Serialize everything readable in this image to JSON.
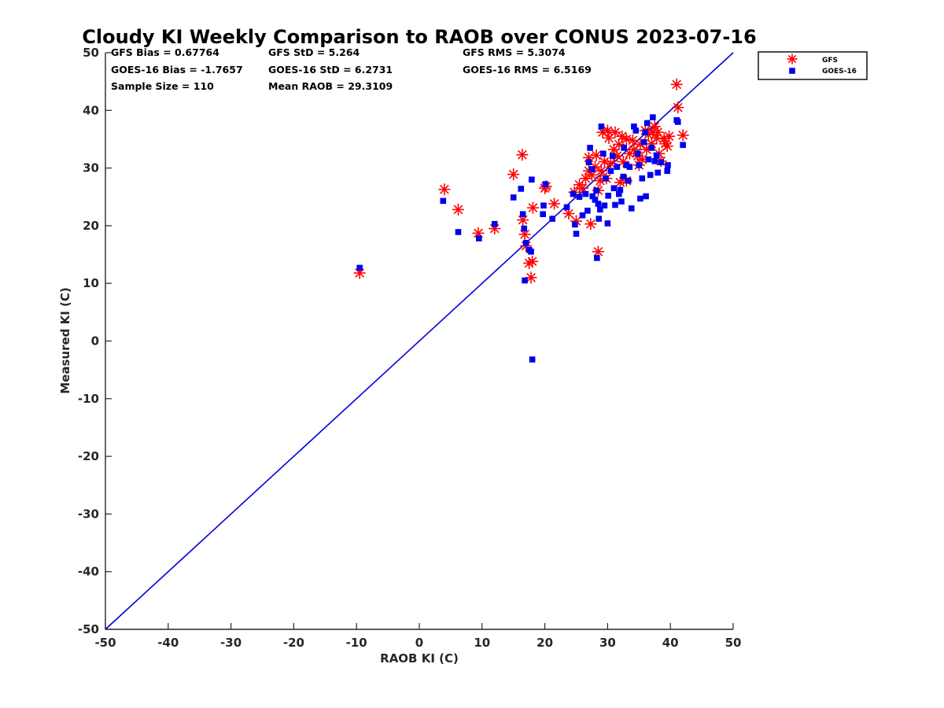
{
  "chart_data": {
    "type": "scatter",
    "title": "Cloudy KI Weekly Comparison to RAOB over CONUS 2023-07-16",
    "xlabel": "RAOB KI (C)",
    "ylabel": "Measured KI (C)",
    "xlim": [
      -50,
      50
    ],
    "ylim": [
      -50,
      50
    ],
    "xticks": [
      -50,
      -40,
      -30,
      -20,
      -10,
      0,
      10,
      20,
      30,
      40,
      50
    ],
    "yticks": [
      -50,
      -40,
      -30,
      -20,
      -10,
      0,
      10,
      20,
      30,
      40,
      50
    ],
    "reference_line": {
      "x": [
        -50,
        50
      ],
      "y": [
        -50,
        50
      ],
      "color": "#0000dd"
    },
    "stats": [
      [
        "GFS Bias = 0.67764",
        "GFS StD = 5.264",
        "GFS RMS = 5.3074"
      ],
      [
        "GOES-16 Bias = -1.7657",
        "GOES-16 StD = 6.2731",
        "GOES-16 RMS = 6.5169"
      ],
      [
        "Sample Size = 110",
        "Mean RAOB = 29.3109"
      ]
    ],
    "legend_position": "top-right-outside",
    "series": [
      {
        "name": "GFS",
        "marker": "asterisk",
        "color": "#ff0000",
        "points": [
          [
            -9.5,
            11.8
          ],
          [
            4,
            26.3
          ],
          [
            6.2,
            22.8
          ],
          [
            9.4,
            18.7
          ],
          [
            12,
            19.5
          ],
          [
            15,
            28.9
          ],
          [
            16.4,
            32.3
          ],
          [
            16.5,
            21
          ],
          [
            16.8,
            18.5
          ],
          [
            17,
            16.5
          ],
          [
            17.5,
            13.5
          ],
          [
            17.8,
            11
          ],
          [
            18,
            13.8
          ],
          [
            18.1,
            23.1
          ],
          [
            20,
            26.5
          ],
          [
            20.2,
            26.8
          ],
          [
            21.5,
            23.8
          ],
          [
            23.8,
            22.1
          ],
          [
            24.7,
            25.8
          ],
          [
            25,
            20.8
          ],
          [
            25.5,
            27.1
          ],
          [
            26,
            26.5
          ],
          [
            26.5,
            28.2
          ],
          [
            27,
            31.8
          ],
          [
            27,
            29.5
          ],
          [
            27.3,
            20.3
          ],
          [
            27.5,
            28.8
          ],
          [
            28,
            30.2
          ],
          [
            28.2,
            32.2
          ],
          [
            28.5,
            15.5
          ],
          [
            28.5,
            26.1
          ],
          [
            28.8,
            27.8
          ],
          [
            29,
            29.5
          ],
          [
            29.2,
            36.2
          ],
          [
            29.5,
            31.1
          ],
          [
            29.8,
            28.2
          ],
          [
            30,
            36.5
          ],
          [
            30.2,
            35.2
          ],
          [
            30.5,
            30.8
          ],
          [
            31,
            33.2
          ],
          [
            31.2,
            36.2
          ],
          [
            31.5,
            32.1
          ],
          [
            31.8,
            34.1
          ],
          [
            32,
            27.5
          ],
          [
            32.3,
            35.5
          ],
          [
            32.5,
            31.1
          ],
          [
            33,
            27.8
          ],
          [
            33,
            35
          ],
          [
            33.5,
            32.5
          ],
          [
            34,
            34.8
          ],
          [
            34.2,
            33.2
          ],
          [
            34.8,
            32.1
          ],
          [
            35,
            30.5
          ],
          [
            35.2,
            34.1
          ],
          [
            35.5,
            31.5
          ],
          [
            36,
            36.5
          ],
          [
            36.2,
            33.2
          ],
          [
            36.5,
            35.8
          ],
          [
            37,
            34.2
          ],
          [
            37.2,
            36.2
          ],
          [
            37.5,
            37.2
          ],
          [
            37.8,
            35.2
          ],
          [
            38,
            36.2
          ],
          [
            38.2,
            32.5
          ],
          [
            38.5,
            31.2
          ],
          [
            39,
            35.1
          ],
          [
            39.2,
            34.2
          ],
          [
            39.5,
            33.8
          ],
          [
            39.8,
            35.5
          ],
          [
            41,
            44.5
          ],
          [
            41.2,
            40.5
          ],
          [
            42,
            35.7
          ]
        ]
      },
      {
        "name": "GOES-16",
        "marker": "square",
        "color": "#0000ee",
        "points": [
          [
            -9.5,
            12.7
          ],
          [
            3.8,
            24.3
          ],
          [
            6.2,
            18.9
          ],
          [
            9.5,
            17.8
          ],
          [
            12,
            20.3
          ],
          [
            15,
            24.9
          ],
          [
            16.2,
            26.4
          ],
          [
            16.5,
            22
          ],
          [
            16.7,
            19.5
          ],
          [
            17,
            17
          ],
          [
            16.8,
            10.5
          ],
          [
            17.5,
            15.8
          ],
          [
            17.8,
            15.5
          ],
          [
            18,
            -3.2
          ],
          [
            17.9,
            28
          ],
          [
            19.7,
            22
          ],
          [
            19.8,
            23.5
          ],
          [
            20.1,
            27.2
          ],
          [
            21.2,
            21.2
          ],
          [
            23.5,
            23.2
          ],
          [
            24.5,
            25.5
          ],
          [
            24.8,
            20.2
          ],
          [
            25,
            18.6
          ],
          [
            25.5,
            25
          ],
          [
            26,
            21.8
          ],
          [
            26.5,
            25.5
          ],
          [
            26.8,
            22.6
          ],
          [
            27,
            31
          ],
          [
            27.2,
            33.5
          ],
          [
            27.5,
            29.8
          ],
          [
            27.6,
            25.1
          ],
          [
            28,
            24.5
          ],
          [
            28.2,
            26.1
          ],
          [
            28.3,
            14.4
          ],
          [
            28.5,
            23.8
          ],
          [
            28.6,
            21.2
          ],
          [
            28.8,
            22.8
          ],
          [
            29,
            37.2
          ],
          [
            29.3,
            32.5
          ],
          [
            29.5,
            23.5
          ],
          [
            29.7,
            28.2
          ],
          [
            30,
            20.4
          ],
          [
            30.1,
            25.2
          ],
          [
            30.5,
            29.5
          ],
          [
            30.8,
            32.1
          ],
          [
            31,
            26.5
          ],
          [
            31.2,
            23.6
          ],
          [
            31.5,
            30.2
          ],
          [
            31.8,
            25.5
          ],
          [
            32,
            26.2
          ],
          [
            32.2,
            24.2
          ],
          [
            32.5,
            28.5
          ],
          [
            32.6,
            33.5
          ],
          [
            33,
            30.5
          ],
          [
            33.3,
            27.8
          ],
          [
            33.5,
            30.2
          ],
          [
            33.8,
            23
          ],
          [
            34.2,
            37.2
          ],
          [
            34.5,
            36.5
          ],
          [
            34.8,
            32.5
          ],
          [
            35,
            30.5
          ],
          [
            35.2,
            24.7
          ],
          [
            35.5,
            28.2
          ],
          [
            35.8,
            34.5
          ],
          [
            36,
            36.2
          ],
          [
            36.1,
            25.1
          ],
          [
            36.3,
            37.8
          ],
          [
            36.5,
            31.5
          ],
          [
            36.8,
            28.8
          ],
          [
            37,
            33.5
          ],
          [
            37.2,
            38.8
          ],
          [
            37.5,
            31.2
          ],
          [
            37.8,
            32.2
          ],
          [
            38,
            29.2
          ],
          [
            38.5,
            31
          ],
          [
            39.5,
            29.5
          ],
          [
            39.6,
            30.5
          ],
          [
            41,
            38.3
          ],
          [
            41.2,
            38
          ],
          [
            42,
            34
          ]
        ]
      }
    ]
  }
}
